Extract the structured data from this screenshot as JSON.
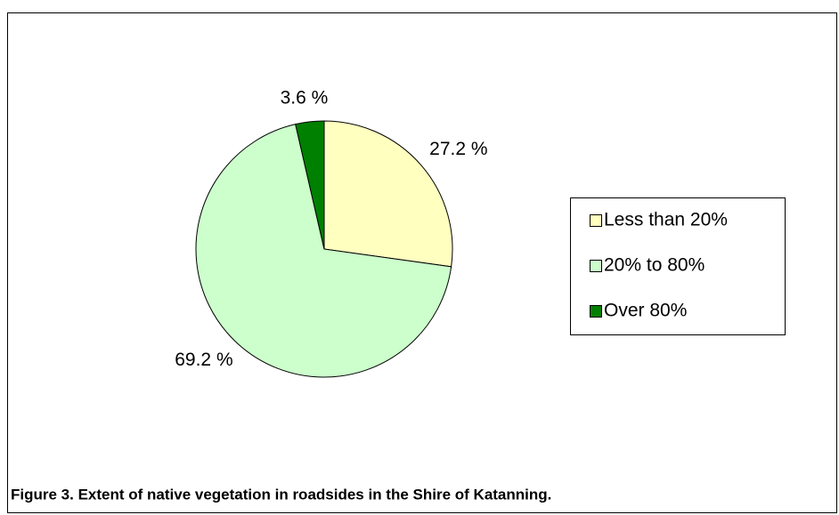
{
  "chart_data": {
    "type": "pie",
    "caption": "Figure 3. Extent of native vegetation in roadsides in the Shire of Katanning.",
    "categories": [
      "Less than 20%",
      "20% to 80%",
      "Over 80%"
    ],
    "values": [
      27.2,
      69.2,
      3.6
    ],
    "value_labels": [
      "27.2 %",
      "69.2 %",
      "3.6 %"
    ],
    "colors": [
      "#ffffc0",
      "#ccffcc",
      "#008000"
    ],
    "legend": "right"
  }
}
